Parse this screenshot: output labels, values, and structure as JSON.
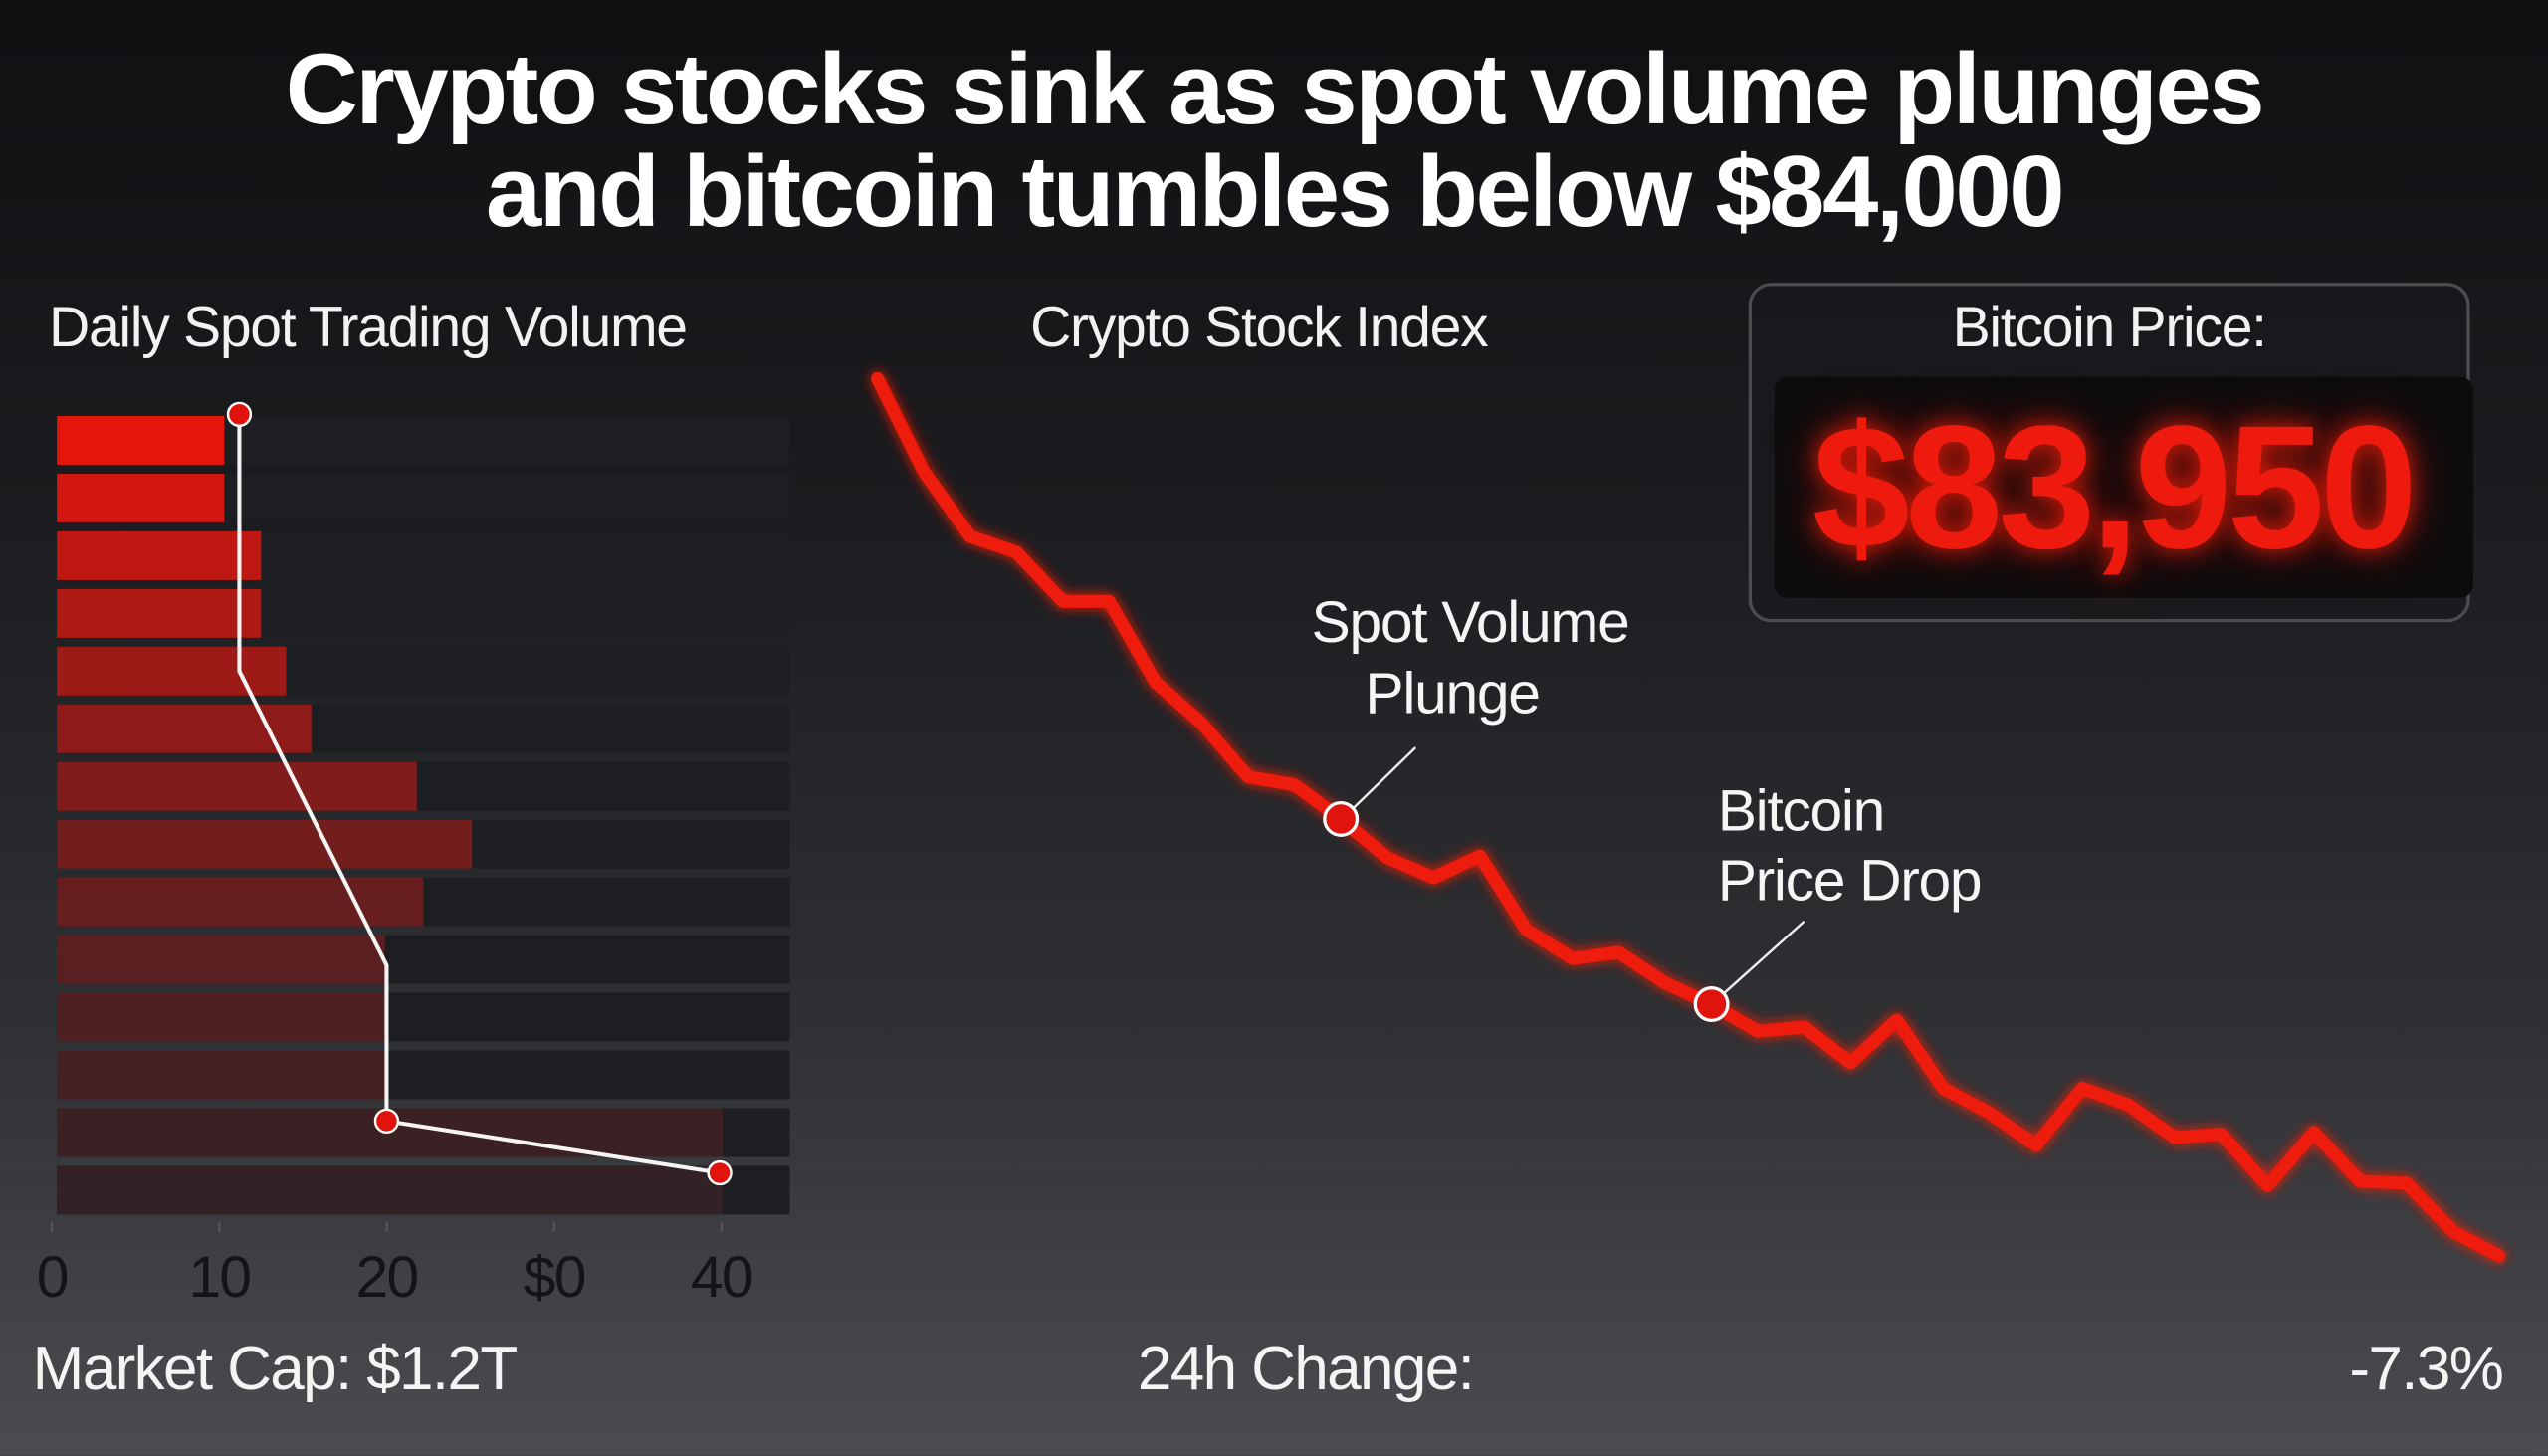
{
  "title": {
    "line1": "Crypto stocks sink as spot volume plunges",
    "line2": "and bitcoin tumbles below $84,000"
  },
  "colors": {
    "accent_red": "#ee1a0e",
    "background_top": "#0f1012",
    "background_bottom": "#4a4c50"
  },
  "bitcoin_price": {
    "label": "Bitcoin Price:",
    "value": "$83,950"
  },
  "footer": {
    "market_cap": "Market Cap: $1.2T",
    "change_label": "24h Change:",
    "change_value": "-7.3%"
  },
  "chart_data": [
    {
      "type": "bar",
      "orientation": "horizontal",
      "title": "Daily Spot Trading Volume",
      "x_ticks": [
        "0",
        "10",
        "20",
        "$0",
        "40"
      ],
      "xlim": [
        0,
        43
      ],
      "values": [
        10,
        10,
        12.2,
        12.2,
        13.7,
        15.2,
        21.5,
        24.8,
        21.9,
        19.6,
        19.6,
        19.6,
        39.8,
        39.8
      ],
      "overlay_line": {
        "points": [
          [
            10.9,
            -0.45
          ],
          [
            10.9,
            4.0
          ],
          [
            19.7,
            9.1
          ],
          [
            19.7,
            11.8
          ],
          [
            39.6,
            12.7
          ]
        ],
        "markers": [
          0,
          3,
          4
        ]
      },
      "grid": false
    },
    {
      "type": "line",
      "title": "Crypto Stock Index",
      "values": [
        100,
        89.4,
        82,
        80.2,
        74.6,
        74.6,
        65.4,
        60.7,
        54.6,
        53.7,
        49.8,
        45.4,
        43.1,
        45.6,
        37.2,
        33.9,
        34.6,
        31.1,
        28.7,
        25.6,
        26.1,
        22,
        26.9,
        19.1,
        16.3,
        12.6,
        19.1,
        17.2,
        13.5,
        13.9,
        8,
        14.1,
        8.5,
        8.3,
        2.8,
        0
      ],
      "annotations": [
        {
          "index": 10,
          "line1": "Spot Volume",
          "line2": "Plunge"
        },
        {
          "index": 18,
          "line1": "Bitcoin",
          "line2": "Price Drop"
        }
      ],
      "grid": false
    }
  ]
}
